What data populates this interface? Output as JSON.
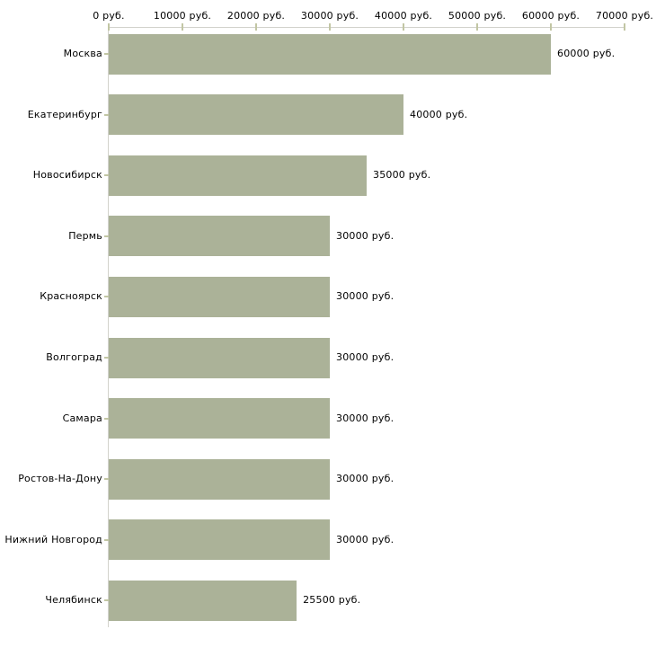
{
  "chart_data": {
    "type": "bar",
    "orientation": "horizontal",
    "title": "",
    "unit": "руб.",
    "categories": [
      "Москва",
      "Екатеринбург",
      "Новосибирск",
      "Пермь",
      "Красноярск",
      "Волгоград",
      "Самара",
      "Ростов-На-Дону",
      "Нижний Новгород",
      "Челябинск"
    ],
    "values": [
      60000,
      40000,
      35000,
      30000,
      30000,
      30000,
      30000,
      30000,
      30000,
      25500
    ],
    "value_labels": [
      "60000 руб.",
      "40000 руб.",
      "35000 руб.",
      "30000 руб.",
      "30000 руб.",
      "30000 руб.",
      "30000 руб.",
      "30000 руб.",
      "30000 руб.",
      "25500 руб."
    ],
    "x_ticks": [
      0,
      10000,
      20000,
      30000,
      40000,
      50000,
      60000,
      70000
    ],
    "x_tick_labels": [
      "0 руб.",
      "10000 руб.",
      "20000 руб.",
      "30000 руб.",
      "40000 руб.",
      "50000 руб.",
      "60000 руб.",
      "70000 руб."
    ],
    "xlim": [
      0,
      70000
    ],
    "grid": false,
    "legend": null,
    "colors": {
      "bar": "#abb298",
      "axis": "#d2d2cc",
      "tick": "#c2c6a4",
      "text": "#000000",
      "background": "#ffffff"
    }
  }
}
